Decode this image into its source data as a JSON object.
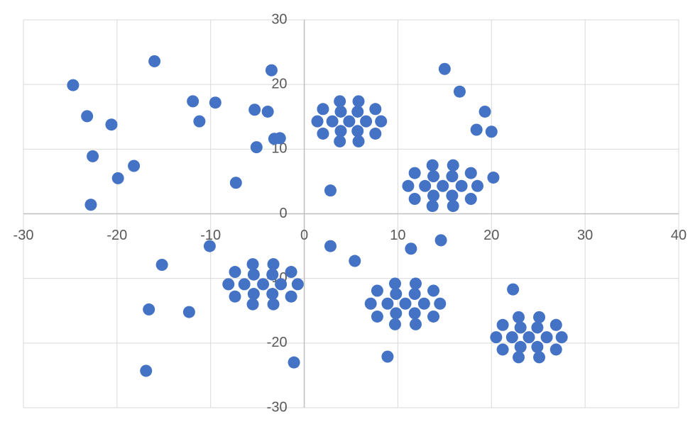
{
  "chart_data": {
    "type": "scatter",
    "x": [
      -24.7,
      -16,
      -23.2,
      -20.6,
      -22.6,
      -18.2,
      -19.9,
      -22.8,
      -11.9,
      -9.5,
      -11.2,
      -5.3,
      -3.9,
      -3.5,
      -3.2,
      -2.6,
      -5.1,
      -7.3,
      2.8,
      15,
      16.6,
      19.3,
      18.4,
      20,
      20.2,
      -10.1,
      -15.2,
      -16.6,
      -12.3,
      -16.9,
      -1.1,
      2.8,
      5.4,
      11.4,
      14.6,
      22.3,
      8.9,
      4.8,
      6.6,
      5.7,
      3.9,
      3,
      3.9,
      5.7,
      8.2,
      7.6,
      5.8,
      3.8,
      2,
      1.4,
      2,
      3.8,
      5.8,
      7.6,
      14.8,
      16.8,
      15.8,
      13.8,
      12.9,
      13.8,
      15.8,
      18.5,
      17.8,
      15.9,
      13.7,
      11.8,
      11.1,
      11.8,
      13.7,
      15.9,
      17.8,
      -4.4,
      -2.5,
      -3.4,
      -5.4,
      -6.4,
      -5.4,
      -3.4,
      -0.7,
      -1.4,
      -3.3,
      -5.5,
      -7.4,
      -8.1,
      -7.4,
      -5.5,
      -3.3,
      -1.4,
      10.8,
      12.8,
      11.8,
      9.8,
      8.9,
      9.8,
      11.8,
      14.5,
      13.8,
      11.9,
      9.7,
      7.8,
      7.1,
      7.8,
      9.7,
      11.9,
      13.8,
      24,
      25.9,
      24.9,
      23.1,
      22.2,
      23.1,
      24.9,
      27.5,
      26.9,
      25.1,
      22.9,
      21.2,
      20.5,
      21.2,
      22.9,
      25.1,
      26.9
    ],
    "series": [
      {
        "color": "#4472c4",
        "values": [
          19.9,
          23.6,
          15.1,
          13.8,
          8.9,
          7.4,
          5.5,
          1.4,
          17.4,
          17.2,
          14.3,
          16.1,
          15.8,
          22.2,
          11.6,
          11.7,
          10.3,
          4.8,
          3.6,
          22.4,
          18.9,
          15.8,
          13,
          12.7,
          5.6,
          -5,
          -7.9,
          -14.8,
          -15.2,
          -24.3,
          -23,
          -5,
          -7.3,
          -5.4,
          -4.1,
          -11.7,
          -22.1,
          14.3,
          14.3,
          15.8,
          15.8,
          14.3,
          12.8,
          12.8,
          14.3,
          16.2,
          17.4,
          17.4,
          16.2,
          14.3,
          12.4,
          11.2,
          11.2,
          12.4,
          4.3,
          4.3,
          5.8,
          5.8,
          4.3,
          2.8,
          2.8,
          4.3,
          6.3,
          7.5,
          7.5,
          6.3,
          4.3,
          2.3,
          1.2,
          1.2,
          2.3,
          -10.9,
          -10.9,
          -9.4,
          -9.4,
          -10.9,
          -12.4,
          -12.4,
          -10.9,
          -9,
          -7.8,
          -7.8,
          -9,
          -10.9,
          -12.8,
          -14,
          -14,
          -12.8,
          -13.9,
          -13.9,
          -12.4,
          -12.4,
          -13.9,
          -15.4,
          -15.4,
          -13.9,
          -11.9,
          -10.8,
          -10.8,
          -11.9,
          -13.9,
          -15.9,
          -17.1,
          -17.1,
          -15.9,
          -19.1,
          -19.1,
          -17.6,
          -17.6,
          -19.1,
          -20.6,
          -20.6,
          -19.1,
          -17.2,
          -16,
          -16,
          -17.2,
          -19.1,
          -21,
          -22.2,
          -22.2,
          -21
        ]
      }
    ],
    "xlim": [
      -30,
      40
    ],
    "xticks": [
      -30,
      -20,
      -10,
      0,
      10,
      20,
      30,
      40
    ],
    "ylim": [
      -30,
      30
    ],
    "yticks": [
      -30,
      -20,
      -10,
      0,
      10,
      20,
      30
    ],
    "grid": true
  }
}
